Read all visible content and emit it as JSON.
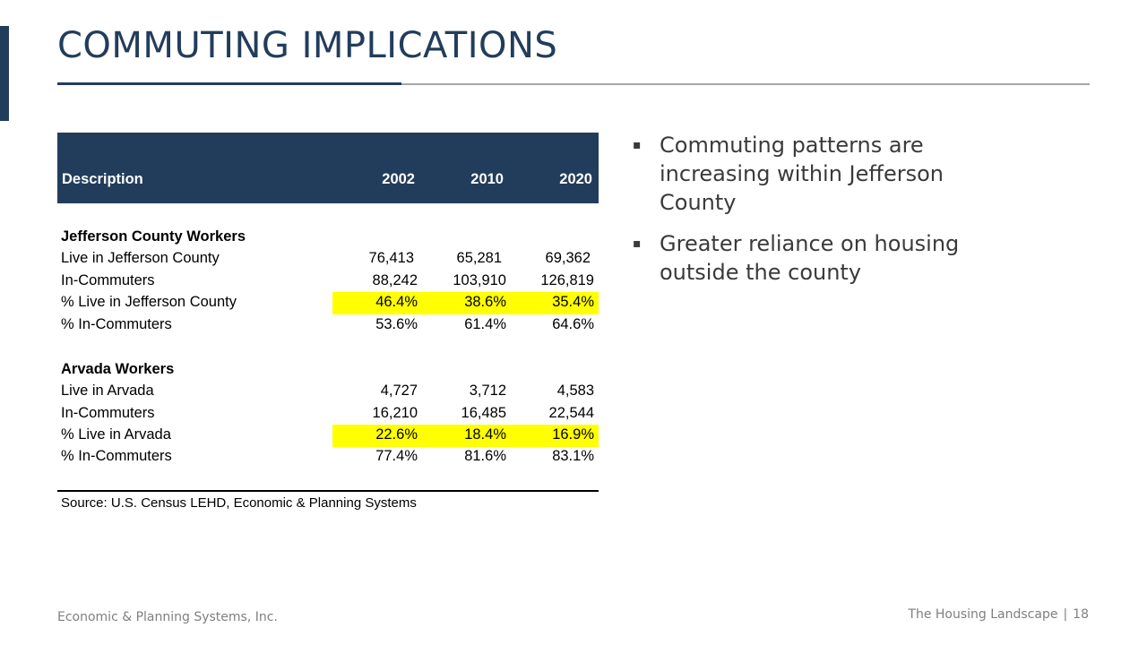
{
  "slide": {
    "title": "COMMUTING IMPLICATIONS",
    "accent_color": "#223d5c",
    "highlight_color": "#ffff00"
  },
  "table": {
    "headers": [
      "Description",
      "2002",
      "2010",
      "2020"
    ],
    "sections": [
      {
        "title": "Jefferson County Workers",
        "rows": [
          {
            "label": "Live in Jefferson County",
            "values": [
              "76,413",
              "65,281",
              "69,362"
            ],
            "highlight": false
          },
          {
            "label": "In-Commuters",
            "values": [
              "88,242",
              "103,910",
              "126,819"
            ],
            "highlight": false
          },
          {
            "label": "% Live in Jefferson County",
            "values": [
              "46.4%",
              "38.6%",
              "35.4%"
            ],
            "highlight": true
          },
          {
            "label": "% In-Commuters",
            "values": [
              "53.6%",
              "61.4%",
              "64.6%"
            ],
            "highlight": false
          }
        ]
      },
      {
        "title": "Arvada Workers",
        "rows": [
          {
            "label": "Live in Arvada",
            "values": [
              "4,727",
              "3,712",
              "4,583"
            ],
            "highlight": false
          },
          {
            "label": "In-Commuters",
            "values": [
              "16,210",
              "16,485",
              "22,544"
            ],
            "highlight": false
          },
          {
            "label": "% Live in Arvada",
            "values": [
              "22.6%",
              "18.4%",
              "16.9%"
            ],
            "highlight": true
          },
          {
            "label": "% In-Commuters",
            "values": [
              "77.4%",
              "81.6%",
              "83.1%"
            ],
            "highlight": false
          }
        ]
      }
    ],
    "source": "Source: U.S. Census LEHD, Economic & Planning Systems"
  },
  "bullets": [
    "Commuting patterns are increasing within Jefferson County",
    "Greater reliance on housing outside the county"
  ],
  "bullet_marker": "▪",
  "footer": {
    "company": "Economic & Planning Systems, Inc.",
    "section": "The Housing Landscape",
    "separator": "|",
    "page_number": "18"
  }
}
